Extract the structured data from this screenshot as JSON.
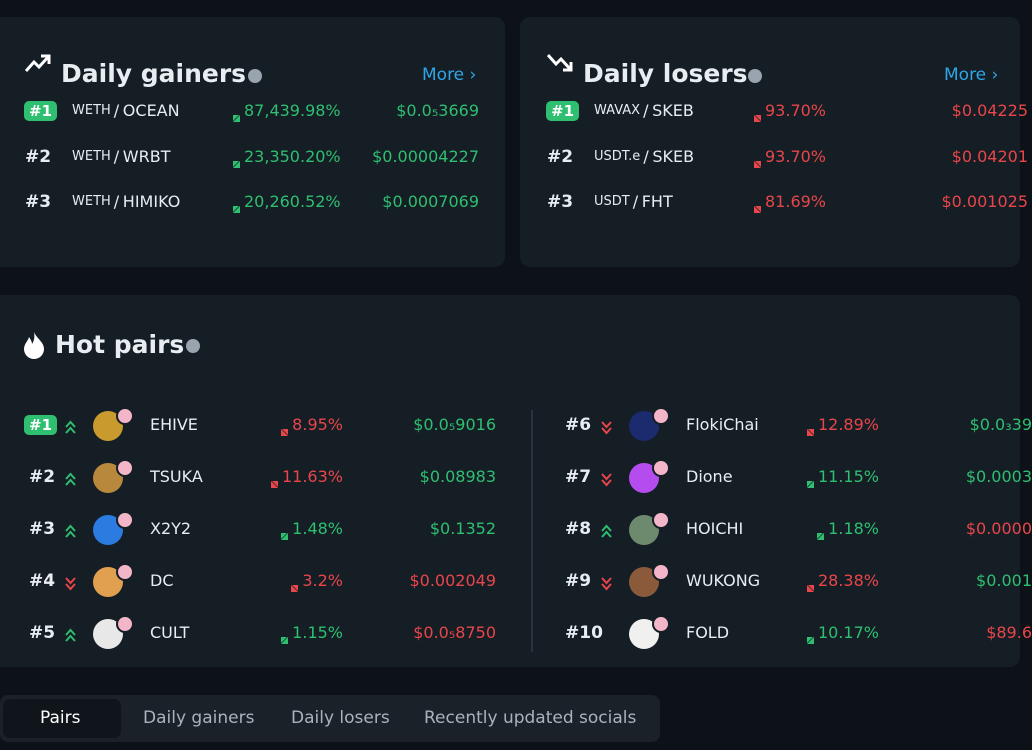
{
  "gainers": {
    "title": "Daily gainers",
    "more": "More",
    "rows": [
      {
        "rank": "#1",
        "base": "WETH",
        "quote": "OCEAN",
        "change": "87,439.98%",
        "price": "$0.0₅3669"
      },
      {
        "rank": "#2",
        "base": "WETH",
        "quote": "WRBT",
        "change": "23,350.20%",
        "price": "$0.00004227"
      },
      {
        "rank": "#3",
        "base": "WETH",
        "quote": "HIMIKO",
        "change": "20,260.52%",
        "price": "$0.0007069"
      }
    ]
  },
  "losers": {
    "title": "Daily losers",
    "more": "More",
    "rows": [
      {
        "rank": "#1",
        "base": "WAVAX",
        "quote": "SKEB",
        "change": "93.70%",
        "price": "$0.04225"
      },
      {
        "rank": "#2",
        "base": "USDT.e",
        "quote": "SKEB",
        "change": "93.70%",
        "price": "$0.04201"
      },
      {
        "rank": "#3",
        "base": "USDT",
        "quote": "FHT",
        "change": "81.69%",
        "price": "$0.001025"
      }
    ]
  },
  "hot_pairs": {
    "title": "Hot pairs",
    "rows": [
      {
        "rank": "#1",
        "trend": "up",
        "name": "EHIVE",
        "change": "8.95%",
        "change_dir": "down",
        "price": "$0.0₅9016",
        "price_dir": "up",
        "avatar": "#c99a2e"
      },
      {
        "rank": "#2",
        "trend": "up",
        "name": "TSUKA",
        "change": "11.63%",
        "change_dir": "down",
        "price": "$0.08983",
        "price_dir": "up",
        "avatar": "#b8893c"
      },
      {
        "rank": "#3",
        "trend": "up",
        "name": "X2Y2",
        "change": "1.48%",
        "change_dir": "up",
        "price": "$0.1352",
        "price_dir": "up",
        "avatar": "#2c7be0"
      },
      {
        "rank": "#4",
        "trend": "down",
        "name": "DC",
        "change": "3.2%",
        "change_dir": "down",
        "price": "$0.002049",
        "price_dir": "down",
        "avatar": "#e0a050"
      },
      {
        "rank": "#5",
        "trend": "up",
        "name": "CULT",
        "change": "1.15%",
        "change_dir": "up",
        "price": "$0.0₅8750",
        "price_dir": "down",
        "avatar": "#e8e8e8"
      },
      {
        "rank": "#6",
        "trend": "down",
        "name": "FlokiChai",
        "change": "12.89%",
        "change_dir": "down",
        "price": "$0.0₃39",
        "price_dir": "up",
        "avatar": "#1c2a6e"
      },
      {
        "rank": "#7",
        "trend": "down",
        "name": "Dione",
        "change": "11.15%",
        "change_dir": "up",
        "price": "$0.0003",
        "price_dir": "up",
        "avatar": "#b44cf0"
      },
      {
        "rank": "#8",
        "trend": "up",
        "name": "HOICHI",
        "change": "1.18%",
        "change_dir": "up",
        "price": "$0.0000",
        "price_dir": "down",
        "avatar": "#6e8a6e"
      },
      {
        "rank": "#9",
        "trend": "down",
        "name": "WUKONG",
        "change": "28.38%",
        "change_dir": "down",
        "price": "$0.001",
        "price_dir": "up",
        "avatar": "#8a5a3a"
      },
      {
        "rank": "#10",
        "trend": "none",
        "name": "FOLD",
        "change": "10.17%",
        "change_dir": "up",
        "price": "$89.6",
        "price_dir": "down",
        "avatar": "#f0f0f0"
      }
    ]
  },
  "tabs": {
    "items": [
      "Pairs",
      "Daily gainers",
      "Daily losers",
      "Recently updated socials"
    ],
    "active": 0
  }
}
